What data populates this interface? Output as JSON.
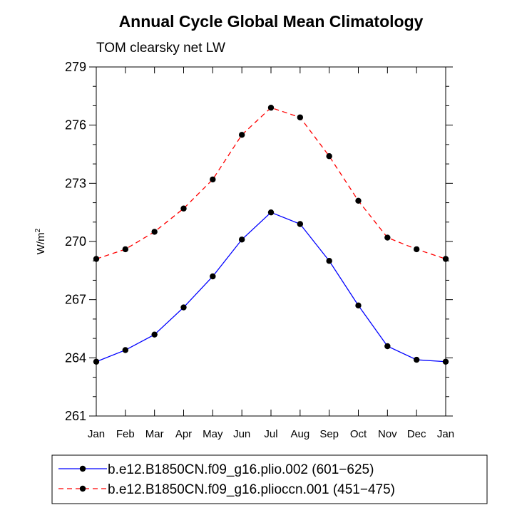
{
  "chart_data": {
    "type": "line",
    "title": "Annual Cycle Global Mean Climatology",
    "subtitle": "TOM clearsky net LW",
    "ylabel": "W/m",
    "ylabel_superscript": "2",
    "xlabel": "",
    "categories": [
      "Jan",
      "Feb",
      "Mar",
      "Apr",
      "May",
      "Jun",
      "Jul",
      "Aug",
      "Sep",
      "Oct",
      "Nov",
      "Dec",
      "Jan"
    ],
    "ylim": [
      261,
      279
    ],
    "yticks": [
      261,
      264,
      267,
      270,
      273,
      276,
      279
    ],
    "grid": false,
    "legend_position": "bottom",
    "series": [
      {
        "name": "b.e12.B1850CN.f09_g16.plio.002 (601−625)",
        "color": "#0000ff",
        "line_style": "solid",
        "marker": "filled-circle",
        "values": [
          263.8,
          264.4,
          265.2,
          266.6,
          268.2,
          270.1,
          271.5,
          270.9,
          269.0,
          266.7,
          264.6,
          263.9,
          263.8
        ]
      },
      {
        "name": "b.e12.B1850CN.f09_g16.plioccn.001 (451−475)",
        "color": "#ff0000",
        "line_style": "dashed",
        "marker": "filled-circle",
        "values": [
          269.1,
          269.6,
          270.5,
          271.7,
          273.2,
          275.5,
          276.9,
          276.4,
          274.4,
          272.1,
          270.2,
          269.6,
          269.1
        ]
      }
    ]
  }
}
